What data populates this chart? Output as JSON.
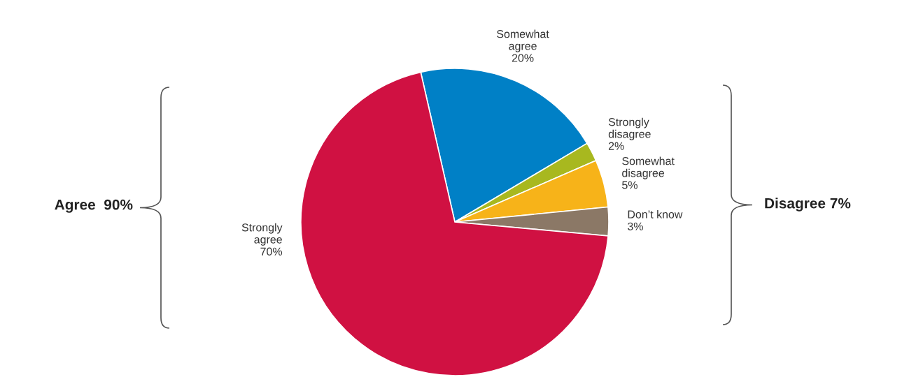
{
  "chart_data": {
    "type": "pie",
    "categories": [
      "Somewhat\nagree",
      "Strongly\ndisagree",
      "Somewhat\ndisagree",
      "Don’t know",
      "Strongly\nagree"
    ],
    "values": [
      20,
      2,
      5,
      3,
      70
    ],
    "colors": [
      "#0080c6",
      "#a8b81f",
      "#f7b319",
      "#8b7866",
      "#d01142"
    ],
    "value_labels": [
      "20%",
      "2%",
      "5%",
      "3%",
      "70%"
    ],
    "annotations": [
      "Agree  90%",
      "Disagree 7%"
    ]
  }
}
